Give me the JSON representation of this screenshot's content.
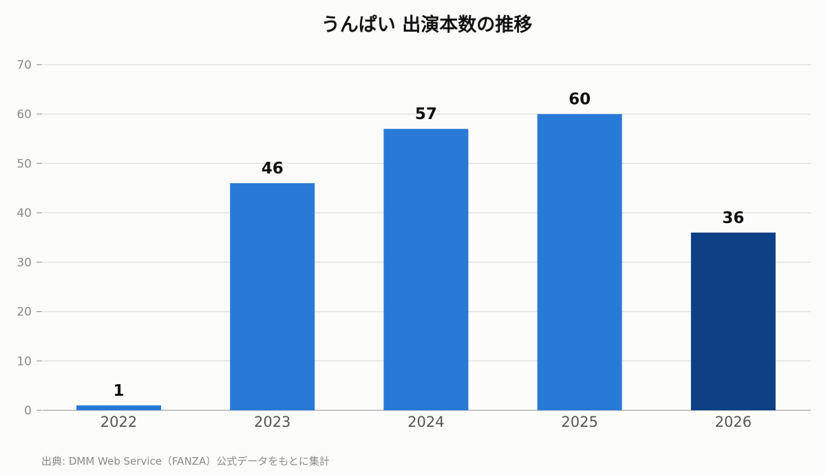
{
  "chart_data": {
    "type": "bar",
    "title": "うんぱい 出演本数の推移",
    "xlabel": "",
    "ylabel": "",
    "categories": [
      "2022",
      "2023",
      "2024",
      "2025",
      "2026"
    ],
    "values": [
      1,
      46,
      57,
      60,
      36
    ],
    "data_labels": [
      "1",
      "46",
      "57",
      "60",
      "36"
    ],
    "ylim": [
      0,
      70
    ],
    "yticks": [
      0,
      10,
      20,
      30,
      40,
      50,
      60,
      70
    ],
    "ytick_labels": [
      "0",
      "10",
      "20",
      "30",
      "40",
      "50",
      "60",
      "70"
    ],
    "grid": true,
    "legend": "none",
    "colors": {
      "bar": "#2979d6",
      "highlight_bar": "#0f4085",
      "grid": "#e1e1e1",
      "axis": "#b4b4b4"
    },
    "highlight_category": "2026"
  },
  "source_note": "出典: DMM Web Service（FANZA）公式データをもとに集計"
}
